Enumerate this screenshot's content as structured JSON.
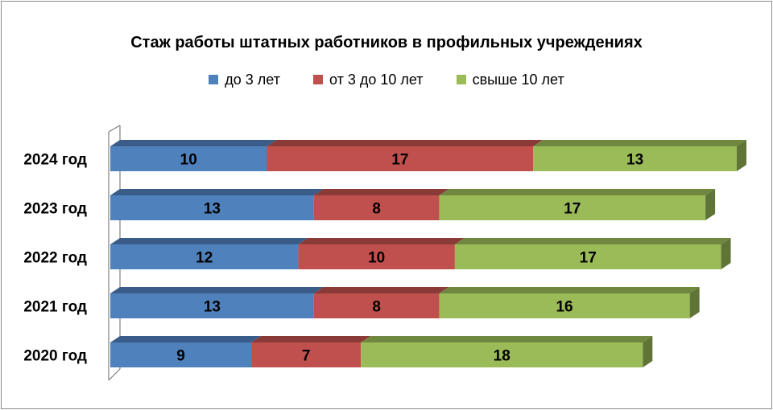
{
  "chart_data": {
    "type": "bar",
    "orientation": "horizontal",
    "stacked": true,
    "title": "Стаж работы  штатных работников в профильных учреждениях",
    "categories": [
      "2024 год",
      "2023 год",
      "2022 год",
      "2021 год",
      "2020 год"
    ],
    "series": [
      {
        "name": "до  3 лет",
        "values": [
          10,
          13,
          12,
          13,
          9
        ],
        "color": "#4f81bd"
      },
      {
        "name": "от 3 до 10 лет",
        "values": [
          17,
          8,
          10,
          8,
          7
        ],
        "color": "#c0504d"
      },
      {
        "name": "свыше 10 лет",
        "values": [
          13,
          17,
          17,
          16,
          18
        ],
        "color": "#9bbb59"
      }
    ],
    "legend_position": "top",
    "grid": false,
    "data_labels": true,
    "xlim": [
      0,
      40
    ]
  }
}
